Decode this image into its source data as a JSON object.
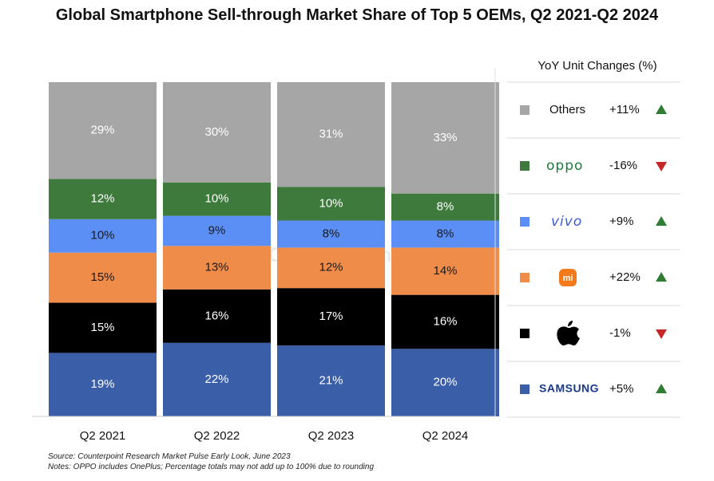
{
  "chart_data": {
    "type": "bar",
    "stacked": true,
    "title": "Global Smartphone Sell-through Market Share of Top 5 OEMs, Q2 2021-Q2 2024",
    "categories": [
      "Q2 2021",
      "Q2 2022",
      "Q2 2023",
      "Q2 2024"
    ],
    "series": [
      {
        "name": "SAMSUNG",
        "color": "#3a5ea8",
        "label_color": "#ffffff",
        "values": [
          19,
          22,
          21,
          20
        ],
        "labels": [
          "19%",
          "22%",
          "21%",
          "20%"
        ]
      },
      {
        "name": "Apple",
        "color": "#000000",
        "label_color": "#ffffff",
        "values": [
          15,
          16,
          17,
          16
        ],
        "labels": [
          "15%",
          "16%",
          "17%",
          "16%"
        ]
      },
      {
        "name": "mi",
        "color": "#f08c4a",
        "label_color": "#1a1a1a",
        "values": [
          15,
          13,
          12,
          14
        ],
        "labels": [
          "15%",
          "13%",
          "12%",
          "14%"
        ]
      },
      {
        "name": "vivo",
        "color": "#5b8ff5",
        "label_color": "#1a1a1a",
        "values": [
          10,
          9,
          8,
          8
        ],
        "labels": [
          "10%",
          "9%",
          "8%",
          "8%"
        ]
      },
      {
        "name": "oppo",
        "color": "#3e7a3c",
        "label_color": "#ffffff",
        "values": [
          12,
          10,
          10,
          8
        ],
        "labels": [
          "12%",
          "10%",
          "10%",
          "8%"
        ]
      },
      {
        "name": "Others",
        "color": "#a6a6a6",
        "label_color": "#ffffff",
        "values": [
          29,
          30,
          31,
          33
        ],
        "labels": [
          "29%",
          "30%",
          "31%",
          "33%"
        ]
      }
    ],
    "legend": {
      "title": "YoY Unit Changes (%)",
      "placement": "right",
      "entries": [
        {
          "key": "others",
          "color": "#a6a6a6",
          "brand": "Others",
          "change": "+11%",
          "direction": "up"
        },
        {
          "key": "oppo",
          "color": "#3e7a3c",
          "brand": "oppo",
          "change": "-16%",
          "direction": "down"
        },
        {
          "key": "vivo",
          "color": "#5b8ff5",
          "brand": "vivo",
          "change": "+9%",
          "direction": "up"
        },
        {
          "key": "xiaomi",
          "color": "#f08c4a",
          "brand": "mi",
          "change": "+22%",
          "direction": "up"
        },
        {
          "key": "apple",
          "color": "#000000",
          "brand": "apple-logo-icon",
          "change": "-1%",
          "direction": "down"
        },
        {
          "key": "samsung",
          "color": "#3a5ea8",
          "brand": "SAMSUNG",
          "change": "+5%",
          "direction": "up"
        }
      ],
      "up_color": "#2e7d32",
      "down_color": "#c62828"
    },
    "watermark": "Counterpoint"
  },
  "notes": {
    "source": "Source: Counterpoint Research Market Pulse Early Look, June 2023",
    "rounding": "Notes: OPPO includes OnePlus; Percentage totals may not add up to 100% due to rounding"
  }
}
